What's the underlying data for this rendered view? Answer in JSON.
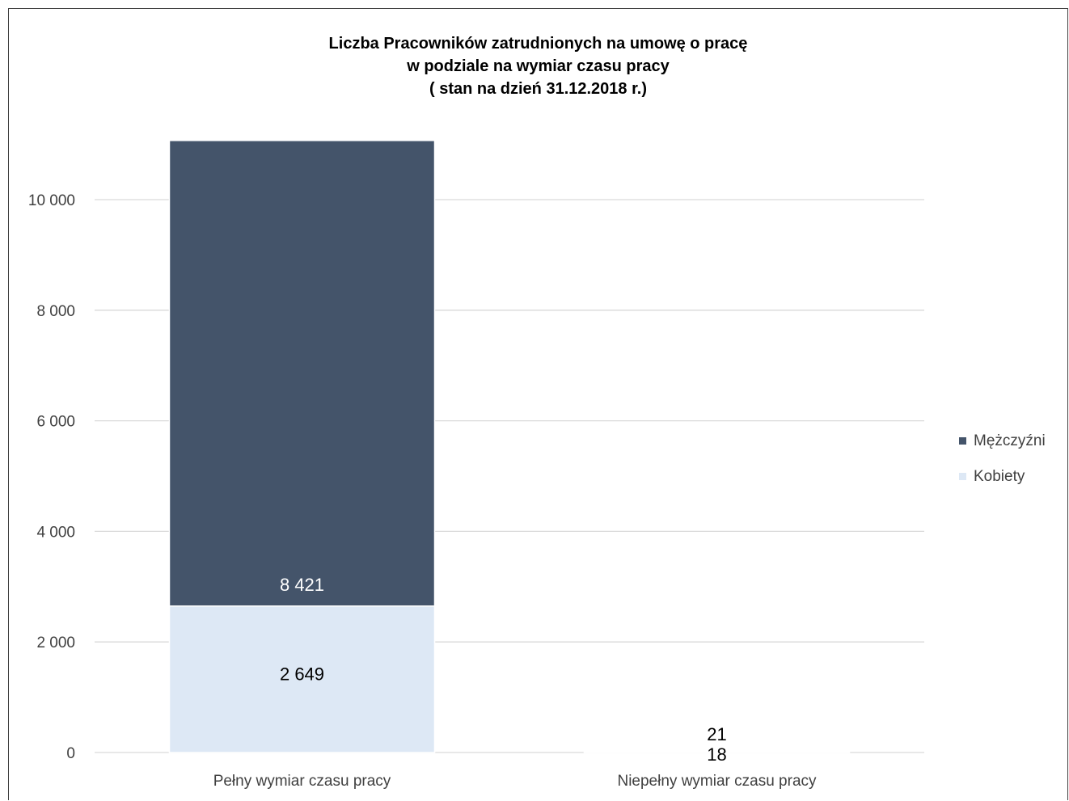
{
  "chart_data": {
    "type": "bar",
    "stacked": true,
    "title": [
      "Liczba Pracowników zatrudnionych na umowę o pracę",
      "w podziale na wymiar czasu pracy",
      "( stan na dzień 31.12.2018 r.)"
    ],
    "categories": [
      "Pełny wymiar czasu pracy",
      "Niepełny wymiar  czasu pracy"
    ],
    "series": [
      {
        "name": "Kobiety",
        "values": [
          2649,
          18
        ],
        "labels": [
          "2 649",
          "18"
        ],
        "color": "#DDE8F5",
        "label_color": "#000000"
      },
      {
        "name": "Mężczyźni",
        "values": [
          8421,
          21
        ],
        "labels": [
          "8 421",
          "21"
        ],
        "color": "#44546A",
        "label_color": "#ffffff"
      }
    ],
    "legend_order": [
      "Mężczyźni",
      "Kobiety"
    ],
    "legend_position": "right",
    "yticks": [
      0,
      2000,
      4000,
      6000,
      8000,
      10000
    ],
    "ytick_labels": [
      "0",
      "2 000",
      "4 000",
      "6 000",
      "8 000",
      "10 000"
    ],
    "ylim": [
      0,
      11000
    ],
    "grid": true,
    "gridline_color": "#D9D9D9"
  }
}
